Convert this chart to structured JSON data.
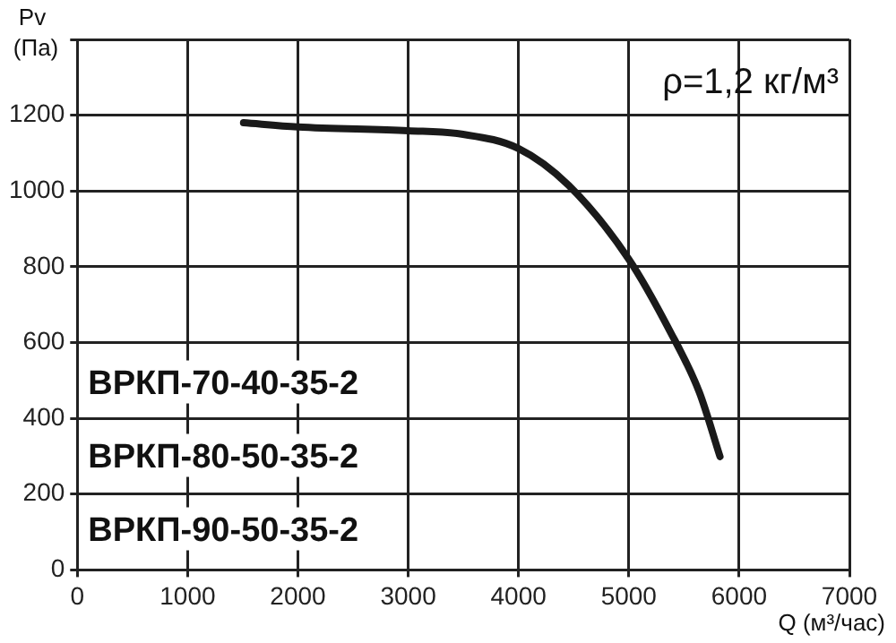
{
  "chart_data": {
    "type": "line",
    "xlabel": "Q (м³/час)",
    "ylabel": "Pv (Па)",
    "x": [
      1507,
      2000,
      3000,
      3484,
      4000,
      4454,
      5000,
      5368,
      5638,
      5827
    ],
    "series": [
      {
        "color": "#1a1a1a",
        "values": [
          1180,
          1169,
          1159,
          1150,
          1112,
          1015,
          820,
          633,
          470,
          299
        ]
      }
    ],
    "xlim": [
      0,
      7000
    ],
    "xticks": [
      0,
      1000,
      2000,
      3000,
      4000,
      5000,
      6000,
      7000
    ],
    "ylim": [
      0,
      1400
    ],
    "yticks": [
      0,
      200,
      400,
      600,
      800,
      1000,
      1200,
      {
        "value": 1400,
        "label": null
      }
    ],
    "grid": true,
    "marker": "none",
    "line_style": "solid",
    "annotations": [
      "ρ=1,2 кг/м³",
      "ВРКП-70-40-35-2",
      "ВРКП-80-50-35-2",
      "ВРКП-90-50-35-2"
    ]
  }
}
